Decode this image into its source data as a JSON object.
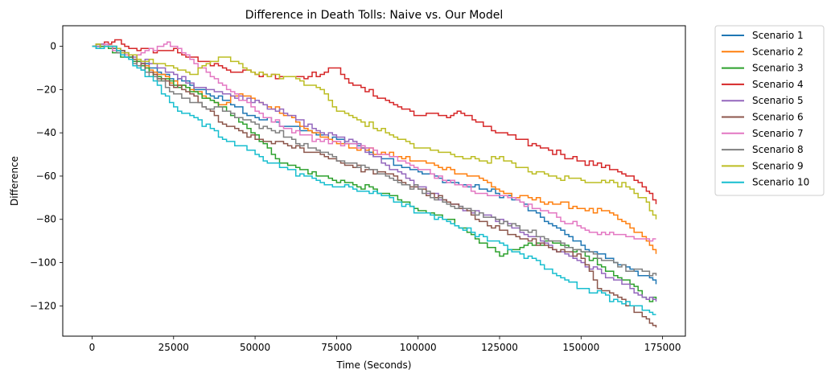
{
  "chart_data": {
    "type": "line",
    "title": "Difference in Death Tolls: Naive vs. Our Model",
    "xlabel": "Time (Seconds)",
    "ylabel": "Difference",
    "xlim": [
      -9000,
      182000
    ],
    "ylim": [
      -134,
      9.5
    ],
    "xticks": [
      0,
      25000,
      50000,
      75000,
      100000,
      125000,
      150000,
      175000
    ],
    "yticks": [
      0,
      -20,
      -40,
      -60,
      -80,
      -100,
      -120
    ],
    "xtick_labels": [
      "0",
      "25000",
      "50000",
      "75000",
      "100000",
      "125000",
      "150000",
      "175000"
    ],
    "ytick_labels": [
      "0",
      "−20",
      "−40",
      "−60",
      "−80",
      "−100",
      "−120"
    ],
    "grid": false,
    "legend_position": "outside-top-right",
    "series": [
      {
        "name": "Scenario 1",
        "color": "#1f77b4",
        "x": [
          0,
          5000,
          10000,
          20000,
          30000,
          40000,
          50000,
          60000,
          70000,
          80000,
          90000,
          100000,
          110000,
          120000,
          130000,
          140000,
          150000,
          155000,
          160000,
          165000,
          170000,
          173000
        ],
        "y": [
          0,
          0,
          -3,
          -12,
          -18,
          -25,
          -33,
          -37,
          -41,
          -45,
          -52,
          -58,
          -63,
          -66,
          -71,
          -82,
          -92,
          -96,
          -100,
          -103,
          -106,
          -110
        ]
      },
      {
        "name": "Scenario 2",
        "color": "#ff7f0e",
        "x": [
          0,
          5000,
          10000,
          20000,
          30000,
          40000,
          45000,
          50000,
          60000,
          70000,
          80000,
          90000,
          100000,
          110000,
          120000,
          125000,
          130000,
          140000,
          150000,
          160000,
          165000,
          170000,
          173000
        ],
        "y": [
          0,
          0,
          -4,
          -13,
          -20,
          -27,
          -22,
          -25,
          -32,
          -42,
          -47,
          -50,
          -53,
          -57,
          -62,
          -67,
          -70,
          -72,
          -75,
          -78,
          -84,
          -90,
          -96
        ]
      },
      {
        "name": "Scenario 3",
        "color": "#2ca02c",
        "x": [
          0,
          5000,
          10000,
          20000,
          30000,
          40000,
          50000,
          55000,
          60000,
          70000,
          80000,
          90000,
          100000,
          110000,
          115000,
          120000,
          125000,
          130000,
          140000,
          150000,
          160000,
          165000,
          170000,
          173000
        ],
        "y": [
          0,
          -1,
          -5,
          -14,
          -21,
          -28,
          -41,
          -50,
          -55,
          -60,
          -64,
          -68,
          -76,
          -80,
          -86,
          -91,
          -97,
          -94,
          -90,
          -95,
          -106,
          -110,
          -117,
          -117
        ]
      },
      {
        "name": "Scenario 4",
        "color": "#d62728",
        "x": [
          0,
          5000,
          7000,
          10000,
          20000,
          25000,
          30000,
          40000,
          50000,
          60000,
          70000,
          75000,
          80000,
          90000,
          100000,
          110000,
          112000,
          120000,
          130000,
          140000,
          150000,
          160000,
          165000,
          170000,
          173000
        ],
        "y": [
          0,
          1,
          3,
          0,
          -2,
          -1,
          -5,
          -10,
          -13,
          -14,
          -13,
          -10,
          -18,
          -25,
          -32,
          -32,
          -30,
          -37,
          -43,
          -48,
          -53,
          -57,
          -60,
          -67,
          -73
        ]
      },
      {
        "name": "Scenario 5",
        "color": "#9467bd",
        "x": [
          0,
          5000,
          10000,
          20000,
          30000,
          40000,
          50000,
          60000,
          70000,
          80000,
          90000,
          100000,
          110000,
          120000,
          130000,
          140000,
          150000,
          160000,
          165000,
          170000,
          173000
        ],
        "y": [
          0,
          0,
          -3,
          -10,
          -17,
          -22,
          -25,
          -32,
          -40,
          -44,
          -55,
          -65,
          -73,
          -78,
          -84,
          -92,
          -100,
          -108,
          -112,
          -117,
          -118
        ]
      },
      {
        "name": "Scenario 6",
        "color": "#8c564b",
        "x": [
          0,
          5000,
          10000,
          20000,
          30000,
          40000,
          50000,
          60000,
          70000,
          80000,
          90000,
          100000,
          110000,
          120000,
          130000,
          140000,
          150000,
          155000,
          160000,
          165000,
          170000,
          173000
        ],
        "y": [
          0,
          0,
          -4,
          -15,
          -22,
          -36,
          -43,
          -46,
          -50,
          -56,
          -59,
          -66,
          -73,
          -81,
          -88,
          -93,
          -98,
          -112,
          -115,
          -120,
          -126,
          -130
        ]
      },
      {
        "name": "Scenario 7",
        "color": "#e377c2",
        "x": [
          0,
          5000,
          10000,
          15000,
          20000,
          23000,
          25000,
          30000,
          40000,
          50000,
          60000,
          70000,
          80000,
          90000,
          100000,
          110000,
          120000,
          130000,
          140000,
          150000,
          155000,
          160000,
          165000,
          170000,
          173000
        ],
        "y": [
          0,
          0,
          -4,
          -3,
          0,
          2,
          0,
          -6,
          -18,
          -30,
          -38,
          -44,
          -45,
          -50,
          -57,
          -62,
          -68,
          -71,
          -77,
          -84,
          -87,
          -87,
          -88,
          -89,
          -89
        ]
      },
      {
        "name": "Scenario 8",
        "color": "#7f7f7f",
        "x": [
          0,
          5000,
          10000,
          20000,
          30000,
          40000,
          50000,
          60000,
          70000,
          80000,
          90000,
          100000,
          110000,
          120000,
          130000,
          140000,
          150000,
          160000,
          165000,
          170000,
          173000
        ],
        "y": [
          0,
          0,
          -5,
          -16,
          -26,
          -30,
          -36,
          -42,
          -49,
          -54,
          -60,
          -66,
          -74,
          -79,
          -83,
          -90,
          -95,
          -100,
          -104,
          -104,
          -106
        ]
      },
      {
        "name": "Scenario 9",
        "color": "#bcbd22",
        "x": [
          0,
          5000,
          10000,
          20000,
          30000,
          35000,
          40000,
          45000,
          50000,
          55000,
          60000,
          70000,
          75000,
          80000,
          90000,
          100000,
          110000,
          120000,
          125000,
          130000,
          140000,
          150000,
          160000,
          165000,
          170000,
          173000
        ],
        "y": [
          0,
          0,
          -3,
          -8,
          -13,
          -8,
          -5,
          -8,
          -13,
          -13,
          -14,
          -20,
          -30,
          -33,
          -40,
          -47,
          -50,
          -53,
          -51,
          -56,
          -60,
          -62,
          -63,
          -66,
          -72,
          -80
        ]
      },
      {
        "name": "Scenario 10",
        "color": "#17becf",
        "x": [
          0,
          5000,
          10000,
          20000,
          25000,
          30000,
          40000,
          50000,
          60000,
          70000,
          80000,
          90000,
          100000,
          110000,
          120000,
          130000,
          140000,
          150000,
          160000,
          165000,
          170000,
          173000
        ],
        "y": [
          0,
          0,
          -5,
          -18,
          -28,
          -32,
          -43,
          -50,
          -57,
          -63,
          -66,
          -69,
          -77,
          -82,
          -88,
          -95,
          -103,
          -112,
          -117,
          -120,
          -122,
          -124
        ]
      }
    ]
  }
}
